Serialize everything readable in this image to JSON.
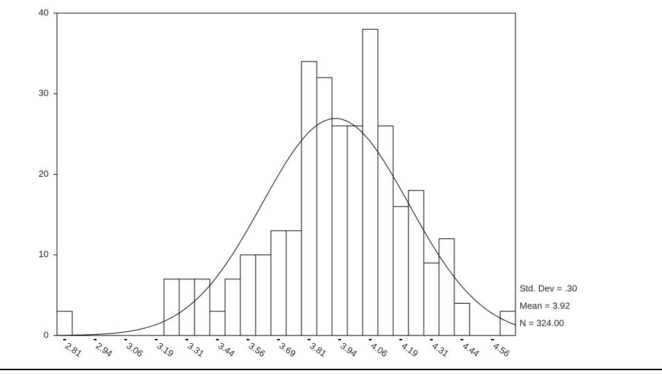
{
  "chart_data": {
    "type": "histogram",
    "bins": [
      2.78125,
      2.84375,
      2.90625,
      2.96875,
      3.03125,
      3.09375,
      3.15625,
      3.21875,
      3.28125,
      3.34375,
      3.40625,
      3.46875,
      3.53125,
      3.59375,
      3.65625,
      3.71875,
      3.78125,
      3.84375,
      3.90625,
      3.96875,
      4.03125,
      4.09375,
      4.15625,
      4.21875,
      4.28125,
      4.34375,
      4.40625,
      4.46875,
      4.53125,
      4.59375,
      4.65625
    ],
    "values": [
      3,
      0,
      0,
      0,
      0,
      0,
      0,
      7,
      7,
      7,
      3,
      7,
      10,
      10,
      13,
      13,
      34,
      32,
      26,
      26,
      38,
      26,
      16,
      18,
      9,
      12,
      4,
      0,
      0,
      3
    ],
    "color": "#ffffff",
    "xlim": [
      2.78125,
      4.65625
    ],
    "xticks": [
      {
        "value": 2.8125,
        "label": "2.81"
      },
      {
        "value": 2.9375,
        "label": "2.94"
      },
      {
        "value": 3.0625,
        "label": "3.06"
      },
      {
        "value": 3.1875,
        "label": "3.19"
      },
      {
        "value": 3.3125,
        "label": "3.31"
      },
      {
        "value": 3.4375,
        "label": "3.44"
      },
      {
        "value": 3.5625,
        "label": "3.56"
      },
      {
        "value": 3.6875,
        "label": "3.69"
      },
      {
        "value": 3.8125,
        "label": "3.81"
      },
      {
        "value": 3.9375,
        "label": "3.94"
      },
      {
        "value": 4.0625,
        "label": "4.06"
      },
      {
        "value": 4.1875,
        "label": "4.19"
      },
      {
        "value": 4.3125,
        "label": "4.31"
      },
      {
        "value": 4.4375,
        "label": "4.44"
      },
      {
        "value": 4.5625,
        "label": "4.56"
      }
    ],
    "ylim": [
      0,
      40
    ],
    "yticks": [
      0,
      10,
      20,
      30,
      40
    ],
    "normal_curve": {
      "mean": 3.92,
      "std_dev": 0.3,
      "n": 324
    },
    "annotations": [
      "Std. Dev = .30",
      "Mean = 3.92",
      "N = 324.00"
    ]
  }
}
